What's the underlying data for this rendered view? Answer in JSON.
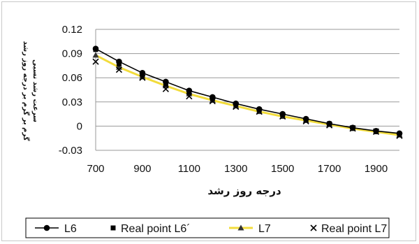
{
  "chart_data": {
    "type": "line",
    "xlabel": "درجه روز رشد",
    "ylabel": [
      "سرعت رشد نسبی",
      "گرم بر گرم بر درجه روز رشد"
    ],
    "xlim": [
      700,
      2000
    ],
    "ylim": [
      -0.03,
      0.12
    ],
    "x_ticks": [
      "700",
      "900",
      "1100",
      "1300",
      "1500",
      "1700",
      "1900"
    ],
    "y_ticks": [
      "0.12",
      "0.09",
      "0.06",
      "0.03",
      "0",
      "-0.03"
    ],
    "grid": "horizontal",
    "legend_position": "bottom",
    "x": [
      700,
      800,
      900,
      1000,
      1100,
      1200,
      1300,
      1400,
      1500,
      1600,
      1700,
      1800,
      1900,
      2000
    ],
    "series": [
      {
        "name": "L6",
        "style": "line-marker",
        "marker": "circle",
        "color": "#000000",
        "values": [
          0.096,
          0.08,
          0.066,
          0.055,
          0.044,
          0.036,
          0.028,
          0.021,
          0.015,
          0.009,
          0.003,
          -0.002,
          -0.006,
          -0.009
        ]
      },
      {
        "name": "Real point L6´",
        "style": "marker",
        "marker": "square",
        "color": "#000000",
        "values": [
          0.095,
          0.077,
          0.063,
          0.052,
          0.042,
          0.034,
          0.027,
          0.02,
          0.014,
          0.008,
          0.003,
          -0.002,
          -0.006,
          -0.01
        ]
      },
      {
        "name": "L7",
        "style": "line-marker",
        "marker": "triangle",
        "color": "#f2dc3c",
        "values": [
          0.088,
          0.073,
          0.061,
          0.05,
          0.04,
          0.032,
          0.025,
          0.018,
          0.012,
          0.007,
          0.002,
          -0.003,
          -0.007,
          -0.011
        ]
      },
      {
        "name": "Real point L7",
        "style": "marker",
        "marker": "x",
        "color": "#000000",
        "values": [
          0.08,
          0.07,
          0.06,
          0.046,
          0.037,
          0.031,
          0.024,
          0.018,
          0.012,
          0.006,
          0.001,
          -0.003,
          -0.007,
          -0.012
        ]
      }
    ]
  }
}
